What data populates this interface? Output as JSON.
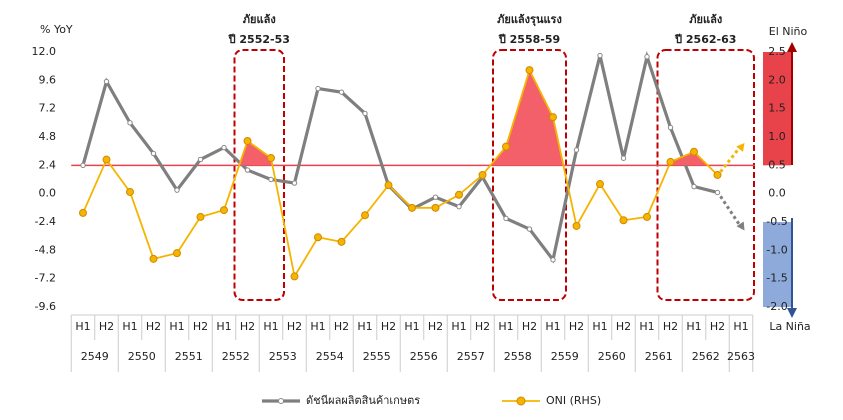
{
  "chart_data": {
    "type": "line",
    "y_label": "% YoY",
    "categories": [
      "H1",
      "H2",
      "H1",
      "H2",
      "H1",
      "H2",
      "H1",
      "H2",
      "H1",
      "H2",
      "H1",
      "H2",
      "H1",
      "H2",
      "H1",
      "H2",
      "H1",
      "H2",
      "H1",
      "H2",
      "H1",
      "H2",
      "H1",
      "H2",
      "H1",
      "H2",
      "H1",
      "H2",
      "H1"
    ],
    "x_groups": [
      "2549",
      "2550",
      "2551",
      "2552",
      "2553",
      "2554",
      "2555",
      "2556",
      "2557",
      "2558",
      "2559",
      "2560",
      "2561",
      "2562",
      "2563"
    ],
    "series": [
      {
        "name": "ดัชนีผลผลิตสินค้าเกษตร",
        "color": "#7f7f7f",
        "values": [
          2.4,
          9.5,
          6.0,
          3.4,
          0.3,
          2.9,
          3.9,
          2.0,
          1.2,
          0.9,
          8.9,
          8.6,
          6.8,
          0.7,
          -1.3,
          -0.3,
          -1.1,
          1.4,
          -2.1,
          -3.0,
          -5.6,
          3.7,
          11.7,
          3.0,
          11.6,
          5.6,
          0.6,
          0.1,
          null
        ]
      },
      {
        "name": "ONI (RHS)",
        "color": "#f5b400",
        "axis": "y2",
        "values": [
          -0.34,
          0.6,
          0.03,
          -1.15,
          -1.05,
          -0.41,
          -0.29,
          0.93,
          0.63,
          -1.46,
          -0.77,
          -0.85,
          -0.38,
          0.15,
          -0.25,
          -0.25,
          -0.02,
          0.33,
          0.83,
          2.18,
          1.35,
          -0.57,
          0.17,
          -0.47,
          -0.41,
          0.56,
          0.74,
          0.33,
          null
        ]
      }
    ],
    "ylim": [
      -9.6,
      12
    ],
    "yticks": [
      {
        "value": 12,
        "label": "12.0"
      },
      9.6,
      7.2,
      4.8,
      2.4,
      {
        "value": 0,
        "label": "0.0"
      },
      -2.4,
      -4.8,
      -7.2,
      -9.6
    ],
    "y2lim": [
      -2,
      2.5
    ],
    "y2ticks": [
      2.5,
      {
        "value": 2,
        "label": "2.0"
      },
      1.5,
      {
        "value": 1,
        "label": "1.0"
      },
      0.5,
      {
        "value": 0,
        "label": "0.0"
      },
      -0.5,
      {
        "value": -1,
        "label": "-1.0"
      },
      -1.5,
      {
        "value": -2,
        "label": "-2.0"
      }
    ],
    "y2_reference": 0.5,
    "reference_color": "#e8434b",
    "annotations": [
      {
        "lines": [
          "ภัยแล้ง",
          "ปี 2552-53"
        ]
      },
      {
        "lines": [
          "ภัยแล้งรุนแรง",
          "ปี 2558-59"
        ]
      },
      {
        "lines": [
          "ภัยแล้ง",
          "ปี 2562-63"
        ]
      }
    ],
    "el_nino_label": "El Niño",
    "la_nina_label": "La Niña"
  }
}
